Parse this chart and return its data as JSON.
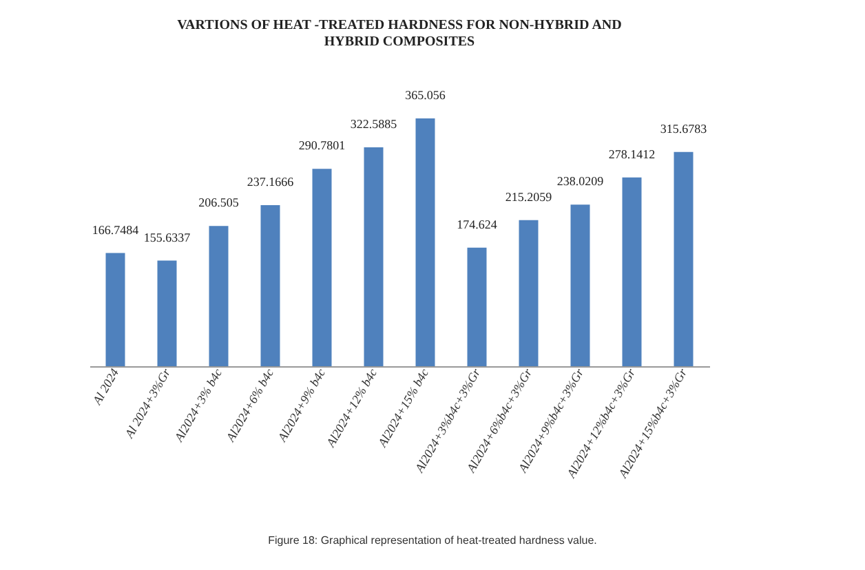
{
  "chart_data": {
    "type": "bar",
    "title": "VARTIONS OF HEAT -TREATED HARDNESS FOR NON-HYBRID AND\nHYBRID COMPOSITES",
    "categories": [
      "Al 2024",
      "Al 2024+3%Gr",
      "Al2024+3% b4c",
      "Al2024+6% b4c",
      "Al2024+9% b4c",
      "Al2024+12% b4c",
      "Al2024+15% b4c",
      "Al2024+3%b4c+3%Gr",
      "Al2024+6%b4c+3%Gr",
      "Al2024+9%b4c+3%Gr",
      "Al2024+12%b4c+3%Gr",
      "Al2024+15%b4c+3%Gr"
    ],
    "values": [
      166.7484,
      155.6337,
      206.505,
      237.1666,
      290.7801,
      322.5885,
      365.056,
      174.624,
      215.2059,
      238.0209,
      278.1412,
      315.6783
    ],
    "color": "#4f81bd",
    "data_labels": true,
    "grid": false,
    "annotations": [
      "Figure 18: Graphical representation of heat-treated hardness value."
    ]
  }
}
